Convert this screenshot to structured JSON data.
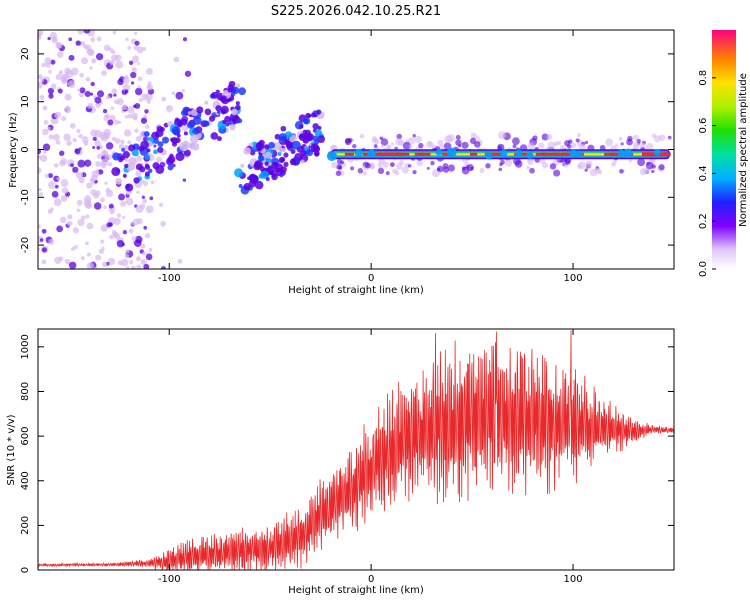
{
  "title": "S225.2026.042.10.25.R21",
  "colors": {
    "line": "#e8282a",
    "scatter_low": "#d8b8f0",
    "scatter_high": "#5a00e0",
    "track_edge": "#00a0ff",
    "track_mid": "#ffe600",
    "track_core": "#ff2020"
  },
  "chart_data": [
    {
      "type": "heatmap",
      "name": "frequency-spectrogram",
      "xlabel": "Height of straight line (km)",
      "ylabel": "Frequency (Hz)",
      "xlim": [
        -165,
        150
      ],
      "ylim": [
        -25,
        25
      ],
      "x_ticks": [
        -100,
        0,
        100
      ],
      "y_ticks": [
        -20,
        -10,
        0,
        10,
        20
      ],
      "colorbar": {
        "label": "Normalized spectral amplitude",
        "range": [
          0,
          1
        ],
        "ticks": [
          0.0,
          0.2,
          0.4,
          0.6,
          0.8
        ],
        "tick_labels": [
          "0.0",
          "0.2",
          "0.4",
          "0.6",
          "0.8"
        ]
      },
      "features": [
        {
          "name": "diffuse scatter",
          "x_range": [
            -165,
            -120
          ],
          "freq_range": [
            -25,
            25
          ],
          "amplitude": 0.05
        },
        {
          "name": "rising branch 1",
          "x_start": -125,
          "freq_start": -5,
          "x_end": -65,
          "freq_end": 10,
          "amplitude": 0.2
        },
        {
          "name": "rising branch 2",
          "x_start": -65,
          "freq_start": -5,
          "x_end": -25,
          "freq_end": 4,
          "amplitude": 0.2
        },
        {
          "name": "main tone",
          "x_range": [
            -20,
            148
          ],
          "freq": -1,
          "amplitude": 1.0
        }
      ]
    },
    {
      "type": "line",
      "name": "snr-profile",
      "xlabel": "Height of straight line (km)",
      "ylabel": "SNR (10 * v/v)",
      "xlim": [
        -165,
        150
      ],
      "ylim": [
        0,
        1080
      ],
      "x_ticks": [
        -100,
        0,
        100
      ],
      "y_ticks": [
        0,
        200,
        400,
        600,
        800,
        1000
      ],
      "envelope": {
        "x": [
          -165,
          -130,
          -110,
          -100,
          -90,
          -70,
          -50,
          -35,
          -25,
          -15,
          -5,
          5,
          20,
          35,
          50,
          65,
          80,
          90,
          100,
          110,
          120,
          130,
          140,
          150
        ],
        "mean": [
          22,
          24,
          30,
          40,
          60,
          80,
          100,
          150,
          240,
          320,
          400,
          500,
          600,
          650,
          680,
          690,
          680,
          660,
          650,
          640,
          630,
          620,
          630,
          625
        ],
        "amplitude": [
          6,
          8,
          20,
          70,
          90,
          100,
          120,
          150,
          180,
          200,
          240,
          260,
          320,
          360,
          380,
          380,
          360,
          330,
          280,
          200,
          120,
          60,
          20,
          15
        ]
      },
      "peaks": [
        {
          "x": 32,
          "y": 1062
        },
        {
          "x": 62,
          "y": 1068
        },
        {
          "x": 99,
          "y": 1074
        }
      ]
    }
  ]
}
